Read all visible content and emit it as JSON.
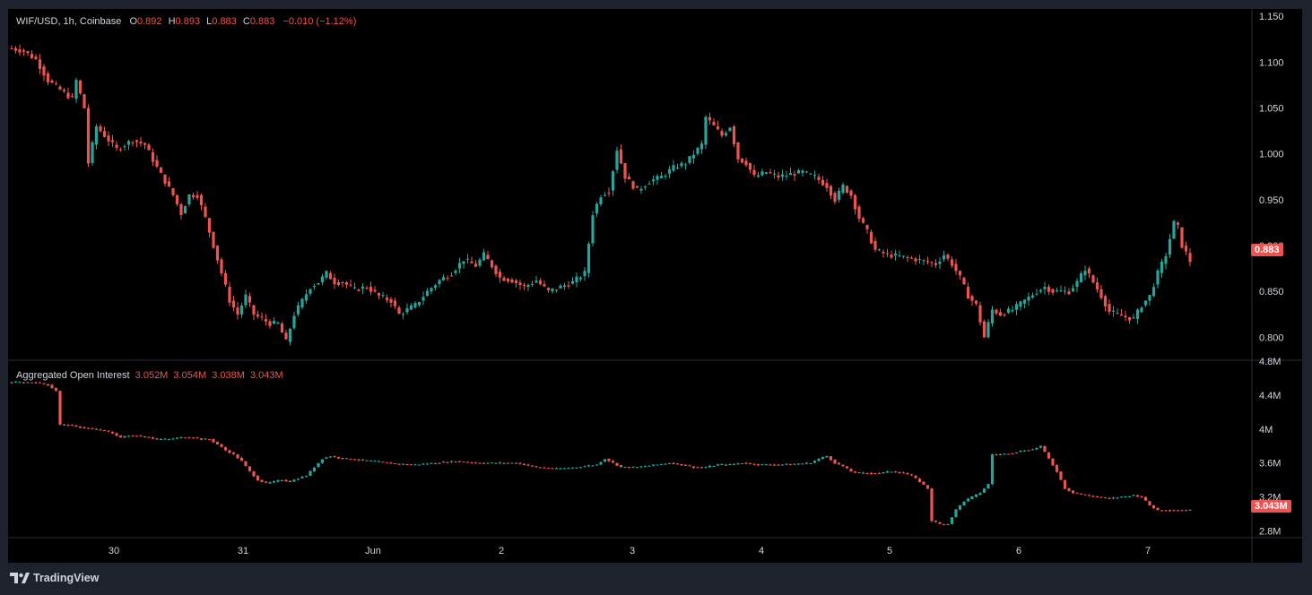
{
  "colors": {
    "up": "#26a69a",
    "down": "#ef5350",
    "bg": "#000000",
    "text": "#d1d4dc",
    "grid": "#2a2e39"
  },
  "price_legend": {
    "symbol": "WIF/USD, 1h, Coinbase",
    "o_label": "O",
    "o": "0.892",
    "h_label": "H",
    "h": "0.893",
    "l_label": "L",
    "l": "0.883",
    "c_label": "C",
    "c": "0.883",
    "change": "−0.010 (−1.12%)"
  },
  "oi_legend": {
    "name": "Aggregated Open Interest",
    "v1": "3.052M",
    "v2": "3.054M",
    "v3": "3.038M",
    "v4": "3.043M"
  },
  "price_tag": "0.883",
  "oi_tag": "3.043M",
  "branding": "TradingView",
  "chart_data": [
    {
      "type": "candlestick",
      "title": "WIF/USD, 1h, Coinbase",
      "x_ticks": [
        "30",
        "31",
        "Jun",
        "2",
        "3",
        "4",
        "5",
        "6",
        "7"
      ],
      "y_ticks": [
        "1.150",
        "1.100",
        "1.050",
        "1.000",
        "0.950",
        "0.900",
        "0.850",
        "0.800"
      ],
      "ylim": [
        0.775,
        1.158
      ],
      "path_close": [
        [
          0,
          1.115
        ],
        [
          3,
          1.112
        ],
        [
          6,
          1.103
        ],
        [
          9,
          1.08
        ],
        [
          12,
          1.07
        ],
        [
          15,
          1.06
        ],
        [
          16,
          1.08
        ],
        [
          18,
          1.05
        ],
        [
          19,
          0.99
        ],
        [
          21,
          1.03
        ],
        [
          24,
          1.015
        ],
        [
          26,
          1.005
        ],
        [
          30,
          1.015
        ],
        [
          33,
          1.01
        ],
        [
          36,
          0.985
        ],
        [
          38,
          0.97
        ],
        [
          40,
          0.955
        ],
        [
          42,
          0.935
        ],
        [
          44,
          0.955
        ],
        [
          46,
          0.955
        ],
        [
          48,
          0.93
        ],
        [
          50,
          0.9
        ],
        [
          52,
          0.87
        ],
        [
          54,
          0.84
        ],
        [
          56,
          0.825
        ],
        [
          58,
          0.845
        ],
        [
          60,
          0.825
        ],
        [
          62,
          0.82
        ],
        [
          64,
          0.815
        ],
        [
          66,
          0.815
        ],
        [
          68,
          0.795
        ],
        [
          70,
          0.825
        ],
        [
          72,
          0.84
        ],
        [
          74,
          0.855
        ],
        [
          76,
          0.86
        ],
        [
          78,
          0.87
        ],
        [
          80,
          0.86
        ],
        [
          82,
          0.86
        ],
        [
          85,
          0.852
        ],
        [
          88,
          0.855
        ],
        [
          91,
          0.845
        ],
        [
          94,
          0.84
        ],
        [
          96,
          0.825
        ],
        [
          98,
          0.83
        ],
        [
          100,
          0.835
        ],
        [
          103,
          0.85
        ],
        [
          106,
          0.862
        ],
        [
          109,
          0.87
        ],
        [
          112,
          0.885
        ],
        [
          115,
          0.878
        ],
        [
          117,
          0.89
        ],
        [
          119,
          0.878
        ],
        [
          121,
          0.865
        ],
        [
          124,
          0.862
        ],
        [
          127,
          0.855
        ],
        [
          130,
          0.862
        ],
        [
          133,
          0.85
        ],
        [
          136,
          0.855
        ],
        [
          139,
          0.86
        ],
        [
          142,
          0.87
        ],
        [
          144,
          0.935
        ],
        [
          146,
          0.955
        ],
        [
          148,
          0.96
        ],
        [
          150,
          1.005
        ],
        [
          152,
          0.975
        ],
        [
          155,
          0.96
        ],
        [
          158,
          0.97
        ],
        [
          161,
          0.975
        ],
        [
          164,
          0.985
        ],
        [
          167,
          0.99
        ],
        [
          169,
          1.0
        ],
        [
          171,
          1.01
        ],
        [
          172,
          1.04
        ],
        [
          174,
          1.03
        ],
        [
          176,
          1.02
        ],
        [
          178,
          1.03
        ],
        [
          180,
          0.995
        ],
        [
          182,
          0.99
        ],
        [
          184,
          0.975
        ],
        [
          187,
          0.98
        ],
        [
          190,
          0.975
        ],
        [
          193,
          0.978
        ],
        [
          196,
          0.98
        ],
        [
          199,
          0.975
        ],
        [
          202,
          0.965
        ],
        [
          204,
          0.95
        ],
        [
          206,
          0.965
        ],
        [
          208,
          0.955
        ],
        [
          210,
          0.93
        ],
        [
          212,
          0.915
        ],
        [
          214,
          0.895
        ],
        [
          217,
          0.89
        ],
        [
          220,
          0.888
        ],
        [
          223,
          0.886
        ],
        [
          226,
          0.883
        ],
        [
          229,
          0.88
        ],
        [
          231,
          0.89
        ],
        [
          233,
          0.88
        ],
        [
          235,
          0.865
        ],
        [
          237,
          0.845
        ],
        [
          239,
          0.835
        ],
        [
          241,
          0.8
        ],
        [
          243,
          0.83
        ],
        [
          245,
          0.825
        ],
        [
          248,
          0.83
        ],
        [
          251,
          0.84
        ],
        [
          254,
          0.85
        ],
        [
          256,
          0.855
        ],
        [
          258,
          0.85
        ],
        [
          260,
          0.85
        ],
        [
          262,
          0.85
        ],
        [
          264,
          0.86
        ],
        [
          266,
          0.875
        ],
        [
          268,
          0.86
        ],
        [
          270,
          0.845
        ],
        [
          272,
          0.828
        ],
        [
          274,
          0.825
        ],
        [
          276,
          0.822
        ],
        [
          278,
          0.82
        ],
        [
          280,
          0.835
        ],
        [
          282,
          0.845
        ],
        [
          284,
          0.87
        ],
        [
          286,
          0.89
        ],
        [
          288,
          0.925
        ],
        [
          289,
          0.92
        ],
        [
          290,
          0.9
        ],
        [
          291,
          0.892
        ],
        [
          292,
          0.883
        ]
      ]
    },
    {
      "type": "candlestick",
      "title": "Aggregated Open Interest",
      "y_ticks": [
        "4.8M",
        "4.4M",
        "4M",
        "3.6M",
        "3.2M",
        "2.8M"
      ],
      "ylim": [
        2.72,
        4.8
      ],
      "path_close": [
        [
          0,
          4.55
        ],
        [
          3,
          4.55
        ],
        [
          6,
          4.55
        ],
        [
          9,
          4.52
        ],
        [
          11,
          4.45
        ],
        [
          12,
          4.05
        ],
        [
          14,
          4.05
        ],
        [
          17,
          4.02
        ],
        [
          20,
          4.0
        ],
        [
          23,
          3.98
        ],
        [
          25,
          3.95
        ],
        [
          27,
          3.9
        ],
        [
          29,
          3.92
        ],
        [
          31,
          3.92
        ],
        [
          34,
          3.9
        ],
        [
          36,
          3.88
        ],
        [
          39,
          3.88
        ],
        [
          42,
          3.9
        ],
        [
          45,
          3.9
        ],
        [
          47,
          3.88
        ],
        [
          49,
          3.88
        ],
        [
          51,
          3.82
        ],
        [
          53,
          3.75
        ],
        [
          55,
          3.7
        ],
        [
          57,
          3.62
        ],
        [
          59,
          3.5
        ],
        [
          61,
          3.4
        ],
        [
          63,
          3.36
        ],
        [
          65,
          3.38
        ],
        [
          67,
          3.4
        ],
        [
          69,
          3.38
        ],
        [
          71,
          3.42
        ],
        [
          73,
          3.45
        ],
        [
          75,
          3.55
        ],
        [
          77,
          3.65
        ],
        [
          79,
          3.68
        ],
        [
          81,
          3.66
        ],
        [
          85,
          3.64
        ],
        [
          90,
          3.62
        ],
        [
          95,
          3.59
        ],
        [
          100,
          3.58
        ],
        [
          105,
          3.6
        ],
        [
          110,
          3.62
        ],
        [
          115,
          3.6
        ],
        [
          120,
          3.6
        ],
        [
          125,
          3.6
        ],
        [
          130,
          3.55
        ],
        [
          135,
          3.53
        ],
        [
          140,
          3.55
        ],
        [
          145,
          3.58
        ],
        [
          147,
          3.65
        ],
        [
          149,
          3.6
        ],
        [
          151,
          3.55
        ],
        [
          155,
          3.55
        ],
        [
          160,
          3.58
        ],
        [
          163,
          3.6
        ],
        [
          166,
          3.58
        ],
        [
          169,
          3.55
        ],
        [
          172,
          3.55
        ],
        [
          175,
          3.58
        ],
        [
          178,
          3.58
        ],
        [
          181,
          3.6
        ],
        [
          185,
          3.58
        ],
        [
          190,
          3.58
        ],
        [
          195,
          3.59
        ],
        [
          198,
          3.6
        ],
        [
          200,
          3.65
        ],
        [
          202,
          3.68
        ],
        [
          204,
          3.6
        ],
        [
          206,
          3.56
        ],
        [
          208,
          3.5
        ],
        [
          210,
          3.48
        ],
        [
          212,
          3.48
        ],
        [
          215,
          3.48
        ],
        [
          218,
          3.5
        ],
        [
          221,
          3.48
        ],
        [
          223,
          3.45
        ],
        [
          225,
          3.38
        ],
        [
          227,
          3.3
        ],
        [
          228,
          2.92
        ],
        [
          230,
          2.88
        ],
        [
          232,
          2.88
        ],
        [
          234,
          3.05
        ],
        [
          236,
          3.15
        ],
        [
          238,
          3.2
        ],
        [
          240,
          3.25
        ],
        [
          242,
          3.35
        ],
        [
          243,
          3.7
        ],
        [
          245,
          3.7
        ],
        [
          248,
          3.72
        ],
        [
          251,
          3.75
        ],
        [
          253,
          3.76
        ],
        [
          255,
          3.8
        ],
        [
          257,
          3.65
        ],
        [
          259,
          3.5
        ],
        [
          261,
          3.3
        ],
        [
          263,
          3.25
        ],
        [
          266,
          3.22
        ],
        [
          269,
          3.2
        ],
        [
          272,
          3.18
        ],
        [
          275,
          3.2
        ],
        [
          278,
          3.22
        ],
        [
          280,
          3.2
        ],
        [
          282,
          3.1
        ],
        [
          284,
          3.043
        ]
      ]
    }
  ]
}
